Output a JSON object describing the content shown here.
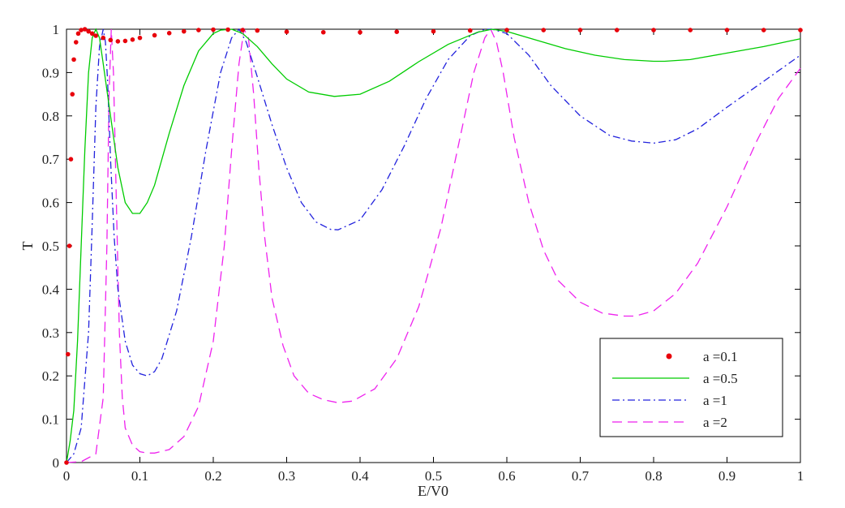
{
  "chart_data": {
    "type": "line",
    "title": "",
    "xlabel": "E/V0",
    "ylabel": "T",
    "xlim": [
      0,
      1
    ],
    "ylim": [
      0,
      1
    ],
    "grid": false,
    "legend_position": "bottom-right",
    "x_ticks": [
      "0",
      "0.1",
      "0.2",
      "0.3",
      "0.4",
      "0.5",
      "0.6",
      "0.7",
      "0.8",
      "0.9",
      "1"
    ],
    "y_ticks": [
      "0",
      "0.1",
      "0.2",
      "0.3",
      "0.4",
      "0.5",
      "0.6",
      "0.7",
      "0.8",
      "0.9",
      "1"
    ],
    "series": [
      {
        "name": "a =0.1",
        "style": "dots",
        "color": "#e8000b",
        "x": [
          0.0,
          0.002,
          0.004,
          0.006,
          0.008,
          0.01,
          0.013,
          0.016,
          0.02,
          0.025,
          0.03,
          0.035,
          0.04,
          0.05,
          0.06,
          0.07,
          0.08,
          0.09,
          0.1,
          0.12,
          0.14,
          0.16,
          0.18,
          0.2,
          0.22,
          0.24,
          0.26,
          0.3,
          0.35,
          0.4,
          0.45,
          0.5,
          0.55,
          0.6,
          0.65,
          0.7,
          0.75,
          0.8,
          0.85,
          0.9,
          0.95,
          1.0
        ],
        "y": [
          0.0,
          0.25,
          0.5,
          0.7,
          0.85,
          0.93,
          0.97,
          0.99,
          0.998,
          1.0,
          0.995,
          0.99,
          0.985,
          0.98,
          0.975,
          0.972,
          0.973,
          0.976,
          0.98,
          0.986,
          0.991,
          0.995,
          0.998,
          0.999,
          0.999,
          0.998,
          0.997,
          0.994,
          0.993,
          0.993,
          0.994,
          0.995,
          0.997,
          0.998,
          0.998,
          0.998,
          0.998,
          0.998,
          0.998,
          0.998,
          0.998,
          0.998
        ]
      },
      {
        "name": "a =0.5",
        "style": "solid",
        "color": "#00cc00",
        "x": [
          0.0,
          0.005,
          0.01,
          0.015,
          0.02,
          0.025,
          0.03,
          0.035,
          0.04,
          0.045,
          0.05,
          0.06,
          0.07,
          0.08,
          0.09,
          0.1,
          0.11,
          0.12,
          0.14,
          0.16,
          0.18,
          0.2,
          0.21,
          0.225,
          0.24,
          0.26,
          0.28,
          0.3,
          0.33,
          0.365,
          0.4,
          0.44,
          0.48,
          0.52,
          0.56,
          0.58,
          0.6,
          0.64,
          0.68,
          0.72,
          0.76,
          0.8,
          0.815,
          0.85,
          0.9,
          0.95,
          1.0
        ],
        "y": [
          0.0,
          0.05,
          0.12,
          0.28,
          0.5,
          0.72,
          0.9,
          0.98,
          1.0,
          0.98,
          0.92,
          0.8,
          0.68,
          0.6,
          0.575,
          0.575,
          0.6,
          0.64,
          0.76,
          0.87,
          0.95,
          0.99,
          0.998,
          1.0,
          0.99,
          0.96,
          0.92,
          0.885,
          0.855,
          0.845,
          0.85,
          0.88,
          0.925,
          0.965,
          0.993,
          1.0,
          0.995,
          0.975,
          0.955,
          0.94,
          0.93,
          0.926,
          0.926,
          0.93,
          0.945,
          0.96,
          0.978
        ]
      },
      {
        "name": "a =1",
        "style": "dashdot",
        "color": "#2222dd",
        "x": [
          0.0,
          0.01,
          0.02,
          0.03,
          0.035,
          0.04,
          0.045,
          0.05,
          0.053,
          0.056,
          0.06,
          0.065,
          0.07,
          0.08,
          0.09,
          0.1,
          0.11,
          0.12,
          0.13,
          0.15,
          0.17,
          0.19,
          0.21,
          0.225,
          0.235,
          0.245,
          0.26,
          0.28,
          0.3,
          0.32,
          0.34,
          0.36,
          0.37,
          0.4,
          0.43,
          0.46,
          0.49,
          0.52,
          0.55,
          0.57,
          0.58,
          0.6,
          0.63,
          0.66,
          0.7,
          0.74,
          0.77,
          0.8,
          0.83,
          0.86,
          0.9,
          0.95,
          1.0
        ],
        "y": [
          0.0,
          0.02,
          0.08,
          0.3,
          0.55,
          0.82,
          0.96,
          1.0,
          0.97,
          0.88,
          0.7,
          0.52,
          0.4,
          0.28,
          0.225,
          0.205,
          0.2,
          0.21,
          0.24,
          0.35,
          0.52,
          0.72,
          0.9,
          0.98,
          1.0,
          0.97,
          0.89,
          0.78,
          0.68,
          0.6,
          0.555,
          0.538,
          0.537,
          0.56,
          0.63,
          0.73,
          0.84,
          0.93,
          0.985,
          1.0,
          1.0,
          0.99,
          0.94,
          0.87,
          0.8,
          0.755,
          0.742,
          0.737,
          0.745,
          0.77,
          0.82,
          0.88,
          0.94
        ]
      },
      {
        "name": "a =2",
        "style": "dashed",
        "color": "#ee22ee",
        "x": [
          0.0,
          0.02,
          0.04,
          0.05,
          0.055,
          0.058,
          0.061,
          0.064,
          0.068,
          0.072,
          0.076,
          0.08,
          0.09,
          0.1,
          0.11,
          0.12,
          0.14,
          0.16,
          0.18,
          0.2,
          0.215,
          0.225,
          0.235,
          0.242,
          0.248,
          0.255,
          0.262,
          0.27,
          0.28,
          0.295,
          0.31,
          0.33,
          0.35,
          0.37,
          0.39,
          0.42,
          0.45,
          0.48,
          0.51,
          0.535,
          0.555,
          0.57,
          0.578,
          0.586,
          0.595,
          0.61,
          0.63,
          0.65,
          0.67,
          0.7,
          0.73,
          0.76,
          0.775,
          0.8,
          0.83,
          0.86,
          0.9,
          0.94,
          0.97,
          1.0
        ],
        "y": [
          0.0,
          0.002,
          0.02,
          0.15,
          0.5,
          0.85,
          1.0,
          0.9,
          0.6,
          0.3,
          0.15,
          0.08,
          0.04,
          0.025,
          0.022,
          0.022,
          0.03,
          0.06,
          0.13,
          0.28,
          0.5,
          0.72,
          0.92,
          1.0,
          0.98,
          0.85,
          0.68,
          0.52,
          0.38,
          0.27,
          0.2,
          0.16,
          0.145,
          0.138,
          0.142,
          0.17,
          0.24,
          0.36,
          0.54,
          0.74,
          0.9,
          0.98,
          1.0,
          0.97,
          0.9,
          0.75,
          0.6,
          0.49,
          0.42,
          0.37,
          0.345,
          0.338,
          0.338,
          0.35,
          0.39,
          0.46,
          0.59,
          0.74,
          0.84,
          0.91
        ]
      }
    ]
  }
}
